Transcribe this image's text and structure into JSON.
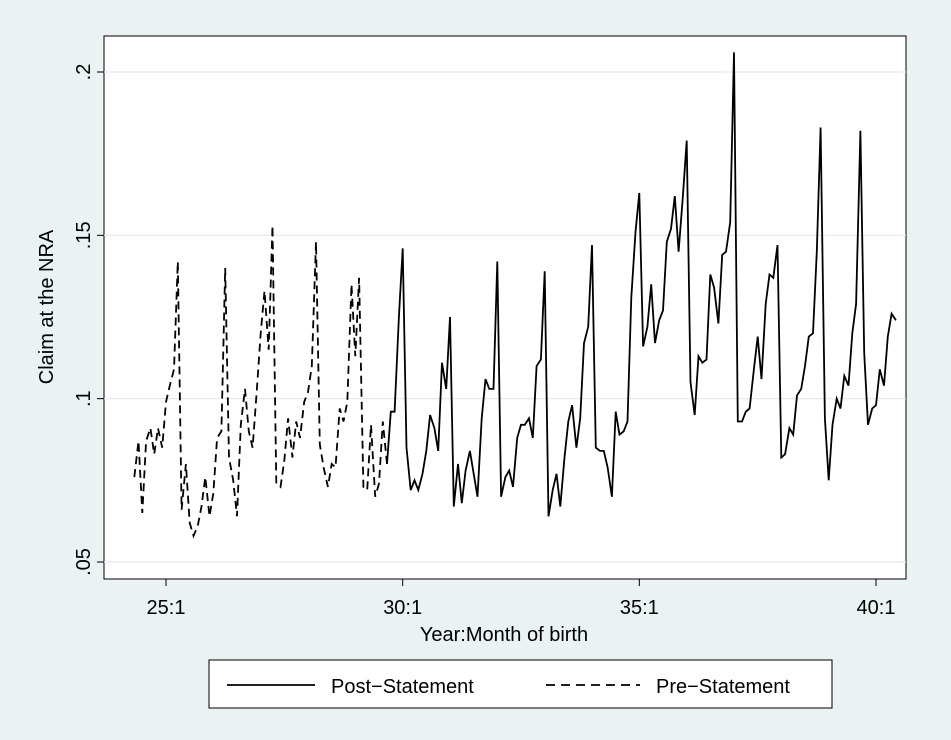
{
  "chart_data": {
    "type": "line",
    "xlabel": "Year:Month of birth",
    "ylabel": "Claim at the NRA",
    "ylim": [
      0.045,
      0.21
    ],
    "yticks": [
      0.05,
      0.1,
      0.15,
      0.2
    ],
    "ytick_labels": [
      ".05",
      ".1",
      ".15",
      ".2"
    ],
    "xlim": [
      24.25,
      40.9
    ],
    "xticks": [
      25,
      30,
      35,
      40
    ],
    "xtick_labels": [
      "25:1",
      "30:1",
      "35:1",
      "40:1"
    ],
    "grid": "horizontal",
    "legend_position": "bottom",
    "series": [
      {
        "name": "Pre−Statement",
        "style": "dashed",
        "x": [
          24.33,
          24.42,
          24.5,
          24.58,
          24.67,
          24.75,
          24.83,
          24.92,
          25,
          25.08,
          25.17,
          25.25,
          25.33,
          25.42,
          25.5,
          25.58,
          25.67,
          25.75,
          25.83,
          25.92,
          26,
          26.08,
          26.17,
          26.25,
          26.33,
          26.42,
          26.5,
          26.58,
          26.67,
          26.75,
          26.83,
          26.92,
          27,
          27.08,
          27.17,
          27.25,
          27.33,
          27.42,
          27.5,
          27.58,
          27.67,
          27.75,
          27.83,
          27.92,
          28,
          28.08,
          28.17,
          28.25,
          28.33,
          28.42,
          28.5,
          28.58,
          28.67,
          28.75,
          28.83,
          28.92,
          29,
          29.08,
          29.17,
          29.25,
          29.33,
          29.42,
          29.5,
          29.58,
          29.67
        ],
        "values": [
          0.076,
          0.087,
          0.065,
          0.087,
          0.091,
          0.083,
          0.091,
          0.085,
          0.099,
          0.104,
          0.109,
          0.142,
          0.066,
          0.08,
          0.062,
          0.058,
          0.061,
          0.067,
          0.076,
          0.064,
          0.071,
          0.088,
          0.09,
          0.14,
          0.082,
          0.075,
          0.064,
          0.092,
          0.103,
          0.09,
          0.085,
          0.103,
          0.12,
          0.133,
          0.115,
          0.153,
          0.074,
          0.073,
          0.081,
          0.094,
          0.082,
          0.093,
          0.088,
          0.099,
          0.102,
          0.11,
          0.148,
          0.086,
          0.079,
          0.073,
          0.08,
          0.079,
          0.097,
          0.093,
          0.099,
          0.135,
          0.113,
          0.137,
          0.073,
          0.072,
          0.092,
          0.07,
          0.074,
          0.093,
          0.08
        ]
      },
      {
        "name": "Post−Statement",
        "style": "solid",
        "x": [
          29.67,
          29.75,
          29.83,
          29.92,
          30,
          30.08,
          30.17,
          30.25,
          30.33,
          30.42,
          30.5,
          30.58,
          30.67,
          30.75,
          30.83,
          30.92,
          31,
          31.08,
          31.17,
          31.25,
          31.33,
          31.42,
          31.5,
          31.58,
          31.67,
          31.75,
          31.83,
          31.92,
          32,
          32.08,
          32.17,
          32.25,
          32.33,
          32.42,
          32.5,
          32.58,
          32.67,
          32.75,
          32.83,
          32.92,
          33,
          33.08,
          33.17,
          33.25,
          33.33,
          33.42,
          33.5,
          33.58,
          33.67,
          33.75,
          33.83,
          33.92,
          34,
          34.08,
          34.17,
          34.25,
          34.33,
          34.42,
          34.5,
          34.58,
          34.67,
          34.75,
          34.83,
          34.92,
          35,
          35.08,
          35.17,
          35.25,
          35.33,
          35.42,
          35.5,
          35.58,
          35.67,
          35.75,
          35.83,
          35.92,
          36,
          36.08,
          36.17,
          36.25,
          36.33,
          36.42,
          36.5,
          36.58,
          36.67,
          36.75,
          36.83,
          36.92,
          37,
          37.08,
          37.17,
          37.25,
          37.33,
          37.42,
          37.5,
          37.58,
          37.67,
          37.75,
          37.83,
          37.92,
          38,
          38.08,
          38.17,
          38.25,
          38.33,
          38.42,
          38.5,
          38.58,
          38.67,
          38.75,
          38.83,
          38.92,
          39,
          39.08,
          39.17,
          39.25,
          39.33,
          39.42,
          39.5,
          39.58,
          39.67,
          39.75,
          39.83,
          39.92,
          40,
          40.08,
          40.17,
          40.25,
          40.33,
          40.42
        ],
        "values": [
          0.08,
          0.096,
          0.096,
          0.125,
          0.146,
          0.085,
          0.072,
          0.075,
          0.072,
          0.077,
          0.084,
          0.095,
          0.091,
          0.084,
          0.111,
          0.103,
          0.125,
          0.067,
          0.08,
          0.068,
          0.078,
          0.084,
          0.077,
          0.07,
          0.094,
          0.106,
          0.103,
          0.103,
          0.142,
          0.07,
          0.076,
          0.078,
          0.073,
          0.088,
          0.092,
          0.092,
          0.094,
          0.088,
          0.11,
          0.112,
          0.139,
          0.064,
          0.072,
          0.077,
          0.067,
          0.082,
          0.093,
          0.098,
          0.085,
          0.094,
          0.117,
          0.122,
          0.147,
          0.085,
          0.084,
          0.084,
          0.079,
          0.07,
          0.096,
          0.089,
          0.09,
          0.093,
          0.131,
          0.151,
          0.163,
          0.116,
          0.122,
          0.135,
          0.117,
          0.124,
          0.127,
          0.148,
          0.152,
          0.162,
          0.145,
          0.162,
          0.179,
          0.105,
          0.095,
          0.113,
          0.111,
          0.112,
          0.138,
          0.134,
          0.123,
          0.144,
          0.145,
          0.154,
          0.206,
          0.093,
          0.093,
          0.096,
          0.097,
          0.109,
          0.119,
          0.106,
          0.129,
          0.138,
          0.137,
          0.147,
          0.082,
          0.083,
          0.091,
          0.089,
          0.101,
          0.103,
          0.11,
          0.119,
          0.12,
          0.145,
          0.183,
          0.094,
          0.075,
          0.092,
          0.1,
          0.097,
          0.107,
          0.104,
          0.12,
          0.129,
          0.182,
          0.114,
          0.092,
          0.097,
          0.098,
          0.109,
          0.104,
          0.119,
          0.126,
          0.124
        ]
      }
    ]
  }
}
